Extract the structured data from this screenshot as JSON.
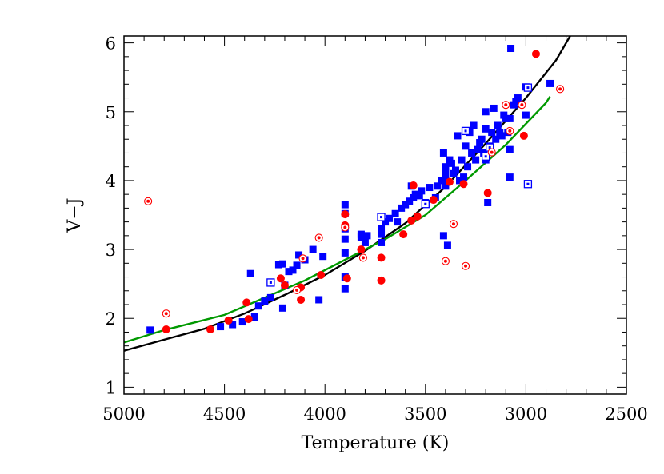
{
  "chart_data": {
    "type": "scatter",
    "title": "",
    "xlabel": "Temperature (K)",
    "ylabel": "V−J",
    "xlim": [
      5000,
      2500
    ],
    "ylim": [
      0.9,
      6.1
    ],
    "x_reversed": true,
    "x_ticks": [
      "5000",
      "4500",
      "4000",
      "3500",
      "3000",
      "2500"
    ],
    "y_ticks": [
      "1",
      "2",
      "3",
      "4",
      "5",
      "6"
    ],
    "grid": false,
    "legend": "none",
    "series": [
      {
        "marker": "filled-square",
        "color": "#0000ff",
        "points": [
          [
            4870,
            1.83
          ],
          [
            4520,
            1.88
          ],
          [
            4460,
            1.91
          ],
          [
            4410,
            1.95
          ],
          [
            4370,
            2.65
          ],
          [
            4350,
            2.02
          ],
          [
            4330,
            2.18
          ],
          [
            4300,
            2.25
          ],
          [
            4270,
            2.3
          ],
          [
            4230,
            2.78
          ],
          [
            4210,
            2.79
          ],
          [
            4210,
            2.15
          ],
          [
            4200,
            2.48
          ],
          [
            4180,
            2.68
          ],
          [
            4160,
            2.7
          ],
          [
            4140,
            2.77
          ],
          [
            4130,
            2.92
          ],
          [
            4100,
            2.85
          ],
          [
            4060,
            3.0
          ],
          [
            4030,
            2.27
          ],
          [
            4010,
            2.9
          ],
          [
            3900,
            3.65
          ],
          [
            3900,
            3.52
          ],
          [
            3900,
            3.3
          ],
          [
            3900,
            3.15
          ],
          [
            3900,
            2.95
          ],
          [
            3900,
            2.6
          ],
          [
            3900,
            2.43
          ],
          [
            3820,
            3.18
          ],
          [
            3820,
            3.22
          ],
          [
            3800,
            3.1
          ],
          [
            3790,
            3.2
          ],
          [
            3720,
            3.1
          ],
          [
            3720,
            3.22
          ],
          [
            3720,
            3.3
          ],
          [
            3700,
            3.4
          ],
          [
            3680,
            3.45
          ],
          [
            3650,
            3.52
          ],
          [
            3640,
            3.4
          ],
          [
            3620,
            3.6
          ],
          [
            3600,
            3.65
          ],
          [
            3580,
            3.7
          ],
          [
            3570,
            3.92
          ],
          [
            3560,
            3.75
          ],
          [
            3550,
            3.8
          ],
          [
            3530,
            3.78
          ],
          [
            3520,
            3.85
          ],
          [
            3500,
            3.68
          ],
          [
            3480,
            3.9
          ],
          [
            3450,
            3.75
          ],
          [
            3440,
            3.92
          ],
          [
            3420,
            4.0
          ],
          [
            3410,
            4.4
          ],
          [
            3410,
            3.2
          ],
          [
            3400,
            4.0
          ],
          [
            3400,
            4.1
          ],
          [
            3400,
            4.2
          ],
          [
            3400,
            3.92
          ],
          [
            3390,
            3.06
          ],
          [
            3380,
            4.3
          ],
          [
            3370,
            4.25
          ],
          [
            3360,
            4.1
          ],
          [
            3350,
            4.15
          ],
          [
            3340,
            4.65
          ],
          [
            3330,
            4.0
          ],
          [
            3320,
            4.3
          ],
          [
            3310,
            4.05
          ],
          [
            3300,
            4.5
          ],
          [
            3290,
            4.2
          ],
          [
            3280,
            4.7
          ],
          [
            3270,
            4.4
          ],
          [
            3260,
            4.8
          ],
          [
            3250,
            4.3
          ],
          [
            3240,
            4.45
          ],
          [
            3230,
            4.55
          ],
          [
            3220,
            4.6
          ],
          [
            3210,
            4.4
          ],
          [
            3200,
            4.75
          ],
          [
            3200,
            4.3
          ],
          [
            3200,
            5.0
          ],
          [
            3190,
            3.68
          ],
          [
            3180,
            4.5
          ],
          [
            3170,
            4.7
          ],
          [
            3160,
            5.05
          ],
          [
            3150,
            4.6
          ],
          [
            3140,
            4.8
          ],
          [
            3130,
            4.7
          ],
          [
            3120,
            4.65
          ],
          [
            3110,
            4.95
          ],
          [
            3100,
            4.9
          ],
          [
            3090,
            4.7
          ],
          [
            3080,
            4.45
          ],
          [
            3080,
            4.05
          ],
          [
            3080,
            4.9
          ],
          [
            3075,
            5.92
          ],
          [
            3060,
            5.1
          ],
          [
            3050,
            5.15
          ],
          [
            3040,
            5.2
          ],
          [
            3000,
            5.36
          ],
          [
            3000,
            4.95
          ],
          [
            2880,
            5.41
          ]
        ]
      },
      {
        "marker": "open-square",
        "color": "#0000ff",
        "points": [
          [
            4270,
            2.52
          ],
          [
            3720,
            3.47
          ],
          [
            3500,
            3.66
          ],
          [
            3300,
            4.72
          ],
          [
            3200,
            4.35
          ],
          [
            3180,
            4.48
          ],
          [
            2990,
            3.95
          ],
          [
            2990,
            5.35
          ]
        ]
      },
      {
        "marker": "filled-circle",
        "color": "#ff0000",
        "points": [
          [
            4790,
            1.84
          ],
          [
            4570,
            1.84
          ],
          [
            4480,
            1.97
          ],
          [
            4390,
            2.23
          ],
          [
            4380,
            1.99
          ],
          [
            4220,
            2.58
          ],
          [
            4200,
            2.48
          ],
          [
            4120,
            2.45
          ],
          [
            4120,
            2.27
          ],
          [
            4020,
            2.63
          ],
          [
            3900,
            3.51
          ],
          [
            3900,
            3.35
          ],
          [
            3890,
            2.58
          ],
          [
            3820,
            3.0
          ],
          [
            3720,
            2.88
          ],
          [
            3720,
            2.55
          ],
          [
            3610,
            3.22
          ],
          [
            3570,
            3.42
          ],
          [
            3560,
            3.93
          ],
          [
            3540,
            3.48
          ],
          [
            3460,
            3.72
          ],
          [
            3380,
            3.98
          ],
          [
            3310,
            3.95
          ],
          [
            3190,
            3.82
          ],
          [
            3010,
            4.65
          ],
          [
            2950,
            5.84
          ]
        ]
      },
      {
        "marker": "circled-dot",
        "color": "#ff0000",
        "points": [
          [
            4880,
            3.7
          ],
          [
            4790,
            2.07
          ],
          [
            4140,
            2.41
          ],
          [
            4110,
            2.87
          ],
          [
            4030,
            3.17
          ],
          [
            3900,
            3.32
          ],
          [
            3810,
            2.88
          ],
          [
            3400,
            2.83
          ],
          [
            3360,
            3.37
          ],
          [
            3300,
            2.76
          ],
          [
            3100,
            5.1
          ],
          [
            3080,
            4.72
          ],
          [
            3020,
            5.1
          ],
          [
            2830,
            5.33
          ],
          [
            3170,
            4.41
          ]
        ]
      }
    ],
    "fit_lines": [
      {
        "color": "#000000",
        "x": [
          5000,
          4800,
          4600,
          4400,
          4200,
          4000,
          3800,
          3600,
          3400,
          3200,
          3000,
          2850,
          2780
        ],
        "y": [
          1.53,
          1.69,
          1.85,
          2.07,
          2.34,
          2.63,
          2.98,
          3.38,
          3.91,
          4.54,
          5.2,
          5.75,
          6.1
        ]
      },
      {
        "color": "#009900",
        "x": [
          5000,
          4800,
          4500,
          4300,
          4100,
          3900,
          3700,
          3500,
          3300,
          3100,
          2900,
          2880
        ],
        "y": [
          1.65,
          1.83,
          2.05,
          2.3,
          2.55,
          2.85,
          3.15,
          3.5,
          4.0,
          4.52,
          5.13,
          5.22
        ]
      }
    ]
  }
}
